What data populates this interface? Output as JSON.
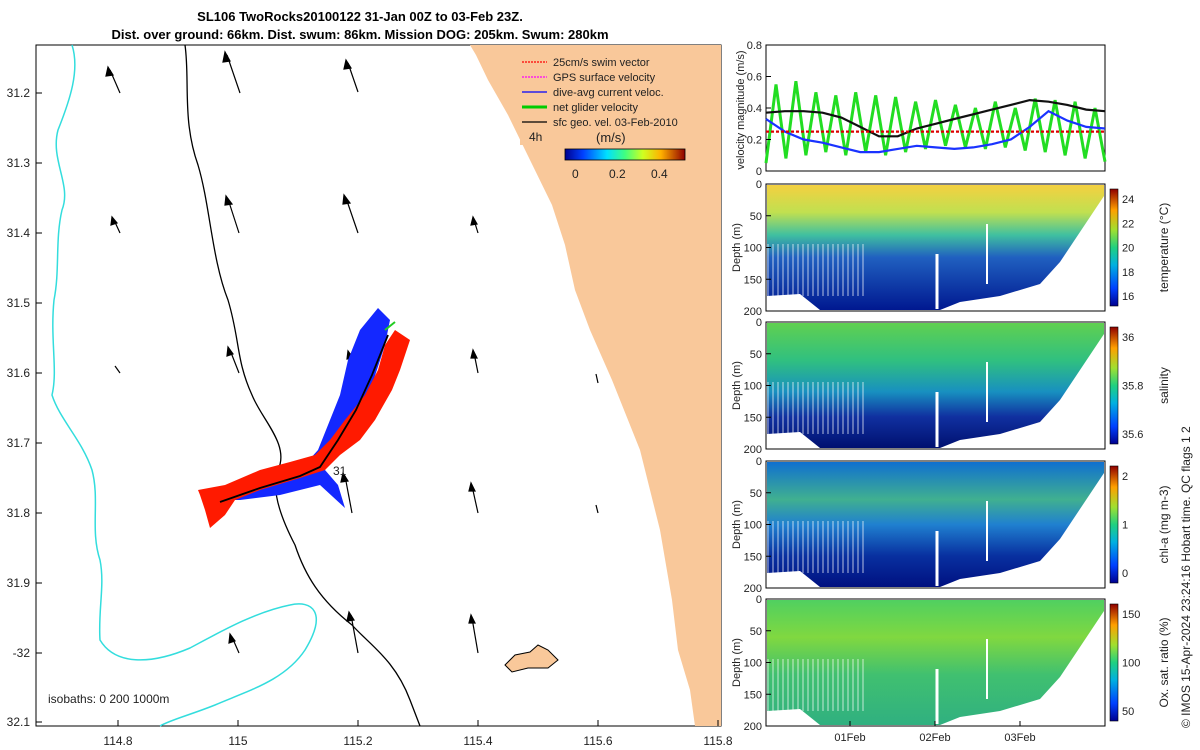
{
  "title_line1": "SL106 TwoRocks20100122 31-Jan 00Z to 03-Feb 23Z.",
  "title_line2": "Dist. over ground: 66km. Dist. swum: 86km. Mission DOG: 205km. Swum: 280km",
  "legend": {
    "items": [
      {
        "label": "25cm/s swim vector",
        "color": "#ff0000"
      },
      {
        "label": "GPS surface velocity",
        "color": "#ff00ff"
      },
      {
        "label": "dive-avg current veloc.",
        "color": "#0000ff"
      },
      {
        "label": "net glider velocity",
        "color": "#00cc00"
      },
      {
        "label": "sfc geo. vel. 03-Feb-2010",
        "color": "#000000"
      }
    ],
    "unit": "(m/s)",
    "hours_label": "4h",
    "colorbar_ticks": [
      "0",
      "0.2",
      "0.4"
    ]
  },
  "map": {
    "lon_ticks": [
      "114.8",
      "115",
      "115.2",
      "115.4",
      "115.6",
      "115.8"
    ],
    "lat_ticks": [
      "31.2",
      "31.3",
      "31.4",
      "31.5",
      "31.6",
      "31.7",
      "31.8",
      "31.9",
      "-32",
      "32.1"
    ],
    "isobaths_label": "isobaths: 0   200  1000m",
    "day_label": "31",
    "colors": {
      "land": "#f9c89a",
      "shallow_isobath": "#000000",
      "deep_isobath": "#33dddd"
    }
  },
  "chart_data": [
    {
      "type": "line",
      "title": "",
      "ylabel": "velocity magnitude (m/s)",
      "ylim": [
        0,
        0.8
      ],
      "yticks": [
        "0",
        "0.2",
        "0.4",
        "0.6",
        "0.8"
      ],
      "series": [
        {
          "name": "net glider velocity",
          "color": "#22dd22",
          "values": [
            0.05,
            0.55,
            0.08,
            0.57,
            0.1,
            0.5,
            0.12,
            0.48,
            0.1,
            0.5,
            0.12,
            0.48,
            0.1,
            0.47,
            0.12,
            0.44,
            0.14,
            0.45,
            0.16,
            0.42,
            0.15,
            0.4,
            0.14,
            0.44,
            0.15,
            0.4,
            0.13,
            0.46,
            0.12,
            0.45,
            0.1,
            0.44,
            0.08,
            0.4,
            0.06
          ]
        },
        {
          "name": "sfc geo. vel.",
          "color": "#111111",
          "values": [
            0.37,
            0.38,
            0.38,
            0.37,
            0.34,
            0.28,
            0.22,
            0.22,
            0.27,
            0.3,
            0.33,
            0.36,
            0.39,
            0.42,
            0.45,
            0.44,
            0.42,
            0.39,
            0.38
          ]
        },
        {
          "name": "dive-avg current",
          "color": "#1a33ff",
          "values": [
            0.33,
            0.25,
            0.2,
            0.18,
            0.15,
            0.12,
            0.12,
            0.14,
            0.16,
            0.15,
            0.14,
            0.15,
            0.17,
            0.2,
            0.28,
            0.38,
            0.32,
            0.28,
            0.27
          ]
        },
        {
          "name": "25cm/s swim",
          "color": "#dd0000",
          "values": [
            0.25,
            0.25
          ]
        }
      ]
    },
    {
      "type": "heatmap",
      "ylabel": "Depth (m)",
      "cbar_label": "temperature (°C)",
      "cbar_ticks": [
        "24",
        "22",
        "20",
        "18",
        "16"
      ],
      "ylim": [
        0,
        200
      ],
      "yticks": [
        "0",
        "50",
        "100",
        "150",
        "200"
      ]
    },
    {
      "type": "heatmap",
      "ylabel": "Depth (m)",
      "cbar_label": "salinity",
      "cbar_ticks": [
        "36",
        "35.8",
        "35.6"
      ],
      "ylim": [
        0,
        200
      ],
      "yticks": [
        "0",
        "50",
        "100",
        "150",
        "200"
      ]
    },
    {
      "type": "heatmap",
      "ylabel": "Depth (m)",
      "cbar_label": "chl-a (mg m-3)",
      "cbar_ticks": [
        "2",
        "1",
        "0"
      ],
      "ylim": [
        0,
        200
      ],
      "yticks": [
        "0",
        "50",
        "100",
        "150",
        "200"
      ]
    },
    {
      "type": "heatmap",
      "ylabel": "Depth (m)",
      "cbar_label": "Ox. sat. ratio (%)",
      "cbar_ticks": [
        "150",
        "100",
        "50"
      ],
      "ylim": [
        0,
        200
      ],
      "yticks": [
        "0",
        "50",
        "100",
        "150",
        "200"
      ],
      "xticks": [
        "01Feb",
        "02Feb",
        "03Feb"
      ]
    }
  ],
  "side_note": "© IMOS 15-Apr-2024 23:24:16 Hobart time. QC flags 1  2"
}
